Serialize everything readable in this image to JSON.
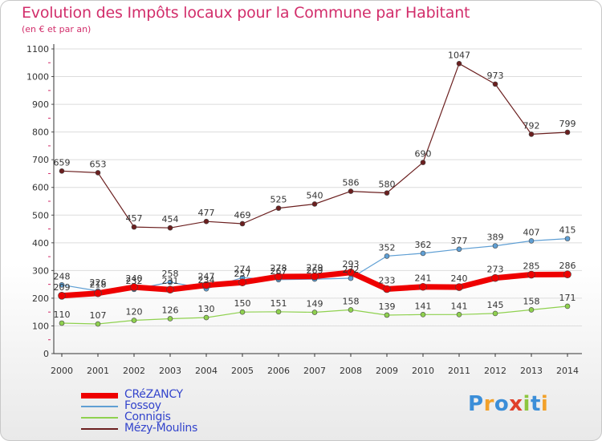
{
  "header": {
    "title": "Evolution des Impôts locaux pour la Commune par Habitant",
    "subtitle": "(en € et par an)"
  },
  "logo": {
    "letters": [
      "P",
      "r",
      "o",
      "x",
      "i",
      "t",
      "i"
    ],
    "colors": [
      "#3b8ed8",
      "#f2a12a",
      "#3b8ed8",
      "#e0402a",
      "#8dc63f",
      "#3b8ed8",
      "#f2a12a"
    ]
  },
  "chart_data": {
    "type": "line",
    "title": "Evolution des Impôts locaux pour la Commune par Habitant",
    "subtitle": "(en € et par an)",
    "categories": [
      "2000",
      "2001",
      "2002",
      "2003",
      "2004",
      "2005",
      "2006",
      "2007",
      "2008",
      "2009",
      "2010",
      "2011",
      "2012",
      "2013",
      "2014"
    ],
    "ylim": [
      0,
      1100
    ],
    "yticks": [
      0,
      100,
      200,
      300,
      400,
      500,
      600,
      700,
      800,
      900,
      1000,
      1100
    ],
    "grid": true,
    "legend_position": "bottom-left",
    "series": [
      {
        "name": "Mézy-Moulins",
        "color": "#6b1f1f",
        "width": 1.2,
        "values": [
          659,
          653,
          457,
          454,
          477,
          469,
          525,
          540,
          586,
          580,
          690,
          1047,
          973,
          792,
          799
        ],
        "labels": [
          "659",
          "653",
          "457",
          "454",
          "477",
          "469",
          "525",
          "540",
          "586",
          "580",
          "690",
          "1047",
          "973",
          "792",
          "799"
        ]
      },
      {
        "name": "Connigis",
        "color": "#8fd14f",
        "width": 1.2,
        "values": [
          110,
          107,
          120,
          126,
          130,
          150,
          151,
          149,
          158,
          139,
          141,
          141,
          145,
          158,
          171
        ],
        "labels": [
          "110",
          "107",
          "120",
          "126",
          "130",
          "150",
          "151",
          "149",
          "158",
          "139",
          "141",
          "141",
          "145",
          "158",
          "171"
        ]
      },
      {
        "name": "Fossoy",
        "color": "#5f9fd4",
        "width": 1.2,
        "values": [
          248,
          226,
          232,
          258,
          234,
          274,
          267,
          269,
          272,
          352,
          362,
          377,
          389,
          407,
          415
        ],
        "labels": [
          "248",
          "226",
          "232",
          "258",
          "234",
          "274",
          "267",
          "269",
          "272",
          "352",
          "362",
          "377",
          "389",
          "407",
          "415"
        ]
      },
      {
        "name": "CRéZANCY",
        "color": "#ee0000",
        "width": 7,
        "values": [
          209,
          218,
          240,
          231,
          247,
          257,
          278,
          279,
          293,
          233,
          241,
          240,
          273,
          285,
          286
        ],
        "labels": [
          "209",
          "218",
          "240",
          "231",
          "247",
          "257",
          "278",
          "279",
          "293",
          "233",
          "241",
          "240",
          "273",
          "285",
          "286"
        ]
      }
    ]
  },
  "legend": {
    "items": [
      {
        "name": "CRéZANCY",
        "color": "#ee0000",
        "thickness": 7
      },
      {
        "name": "Fossoy",
        "color": "#5f9fd4",
        "thickness": 1.5
      },
      {
        "name": "Connigis",
        "color": "#8fd14f",
        "thickness": 1.5
      },
      {
        "name": "Mézy-Moulins",
        "color": "#6b1f1f",
        "thickness": 1.5
      }
    ]
  }
}
